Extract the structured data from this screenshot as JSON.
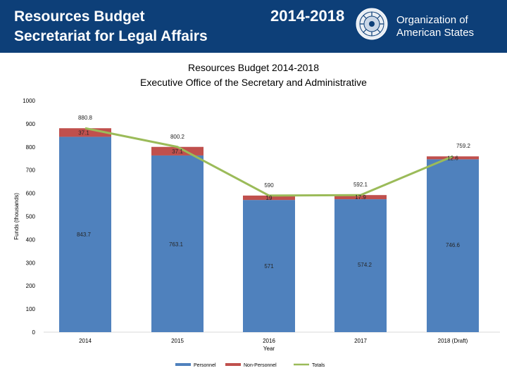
{
  "header": {
    "title_line1": "Resources Budget",
    "title_line2": "Secretariat for Legal Affairs",
    "years": "2014-2018",
    "org_line1": "Organization of",
    "org_line2": "American States",
    "seal_icon": "oas-seal-icon",
    "background_color": "#0d3f78"
  },
  "chart_data": {
    "type": "bar",
    "stacked": true,
    "title": "Resources Budget 2014-2018",
    "subtitle": "Executive Office of the Secretary and Administrative",
    "xlabel": "Year",
    "ylabel": "Funds (thousands)",
    "ylim": [
      0,
      1000
    ],
    "yticks": [
      0,
      100,
      200,
      300,
      400,
      500,
      600,
      700,
      800,
      900,
      1000
    ],
    "categories": [
      "2014",
      "2015",
      "2016",
      "2017",
      "2018 (Draft)"
    ],
    "series": [
      {
        "name": "Personnel",
        "color": "#4f81bd",
        "values": [
          843.7,
          763.1,
          571,
          574.2,
          746.6
        ],
        "labels": [
          "843.7",
          "763.1",
          "571",
          "574.2",
          "746.6"
        ]
      },
      {
        "name": "Non-Personnel",
        "color": "#c0504d",
        "values": [
          37.1,
          37.1,
          19,
          17.9,
          12.6
        ],
        "labels": [
          "37.1",
          "37.1",
          "19",
          "17.9",
          "12.6"
        ]
      }
    ],
    "totals": {
      "name": "Totals",
      "color": "#9bbb59",
      "values": [
        880.8,
        800.2,
        590,
        592.1,
        759.2
      ],
      "labels": [
        "880.8",
        "800.2",
        "590",
        "592.1",
        "759.2"
      ]
    },
    "legend": [
      "Personnel",
      "Non-Personnel",
      "Totals"
    ],
    "legend_position": "bottom"
  }
}
